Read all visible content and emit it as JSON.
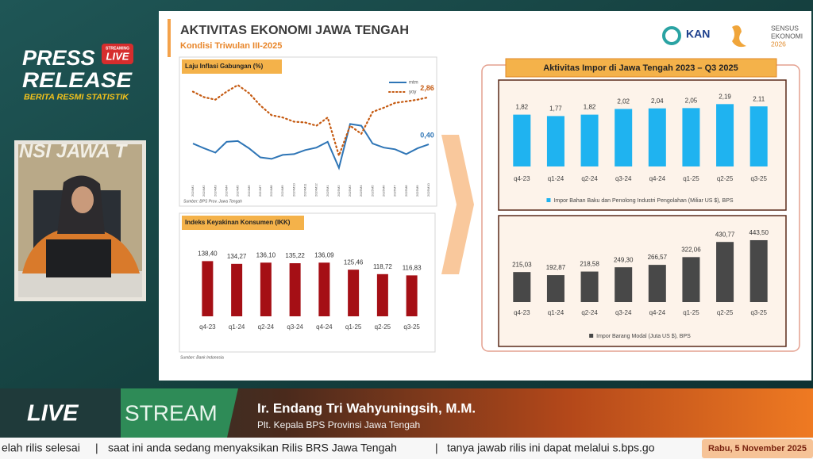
{
  "brand": {
    "badge_top": "STREAMING",
    "badge_live": "LIVE",
    "title_line1": "PRESS",
    "title_line2": "RELEASE",
    "tagline": "BERITA RESMI STATISTIK"
  },
  "webcam": {
    "wall_text": "NSI JAWA T"
  },
  "slide": {
    "title": "AKTIVITAS EKONOMI JAWA TENGAH",
    "subtitle": "Kondisi Triwulan III-2025",
    "logo_kan": "KAN",
    "logo_se_line1": "SENSUS",
    "logo_se_line2": "EKONOMI",
    "logo_se_line3": "2026",
    "import_title": "Aktivitas Impor di Jawa Tengah 2023 – Q3 2025"
  },
  "chart_data": [
    {
      "type": "line",
      "title": "Laju Inflasi Gabungan (%)",
      "source": "Sumber: BPS Prov. Jawa Tengah",
      "categories": [
        "2024M1",
        "2024M2",
        "2024M3",
        "2024M4",
        "2024M5",
        "2024M6",
        "2024M7",
        "2024M8",
        "2024M9",
        "2024M10",
        "2024M11",
        "2024M12",
        "2025M1",
        "2025M2",
        "2025M3",
        "2025M4",
        "2025M5",
        "2025M6",
        "2025M7",
        "2025M8",
        "2025M9",
        "2025M10"
      ],
      "ylim": [
        -1.5,
        4
      ],
      "series": [
        {
          "name": "mtm",
          "color": "#2e75b6",
          "style": "solid",
          "values": [
            0.44,
            0.19,
            -0.03,
            0.53,
            0.57,
            0.19,
            -0.28,
            -0.36,
            -0.15,
            -0.11,
            0.1,
            0.23,
            0.53,
            -0.83,
            1.46,
            1.37,
            0.44,
            0.23,
            0.14,
            -0.11,
            0.19,
            0.4
          ],
          "value_labels": [
            null,
            null,
            null,
            null,
            null,
            null,
            null,
            null,
            null,
            null,
            null,
            null,
            null,
            null,
            null,
            null,
            null,
            null,
            null,
            null,
            null,
            "0,40"
          ]
        },
        {
          "name": "yoy",
          "color": "#c55a11",
          "style": "dotted",
          "values": [
            3.15,
            2.86,
            2.73,
            3.15,
            3.49,
            3.07,
            2.43,
            1.92,
            1.8,
            1.58,
            1.54,
            1.37,
            1.8,
            -0.19,
            1.37,
            0.95,
            2.09,
            2.31,
            2.56,
            2.64,
            2.73,
            2.86
          ],
          "value_labels": [
            null,
            null,
            null,
            null,
            null,
            null,
            null,
            null,
            null,
            null,
            null,
            null,
            null,
            null,
            null,
            null,
            null,
            null,
            null,
            null,
            null,
            "2,86"
          ]
        }
      ]
    },
    {
      "type": "bar",
      "title": "Indeks Keyakinan Konsumen (IKK)",
      "source": "Sumber: Bank Indonesia",
      "categories": [
        "q4-23",
        "q1-24",
        "q2-24",
        "q3-24",
        "q4-24",
        "q1-25",
        "q2-25",
        "q3-25"
      ],
      "values": [
        138.4,
        134.27,
        136.1,
        135.22,
        136.09,
        125.46,
        118.72,
        116.83
      ],
      "value_labels": [
        "138,40",
        "134,27",
        "136,10",
        "135,22",
        "136,09",
        "125,46",
        "118,72",
        "116,83"
      ],
      "color": "#a50f15",
      "ylim": [
        55,
        170
      ]
    },
    {
      "type": "bar",
      "categories": [
        "q4-23",
        "q1-24",
        "q2-24",
        "q3-24",
        "q4-24",
        "q1-25",
        "q2-25",
        "q3-25"
      ],
      "series": [
        {
          "name": "Impor Bahan Baku dan Penolong Industri Pengolahan (Miliar US $), BPS",
          "color": "#1fb3f0",
          "values": [
            1.82,
            1.77,
            1.82,
            2.02,
            2.04,
            2.05,
            2.19,
            2.11
          ],
          "value_labels": [
            "1,82",
            "1,77",
            "1,82",
            "2,02",
            "2,04",
            "2,05",
            "2,19",
            "2,11"
          ]
        }
      ],
      "ylim": [
        0,
        2.7
      ]
    },
    {
      "type": "bar",
      "categories": [
        "q4-23",
        "q1-24",
        "q2-24",
        "q3-24",
        "q4-24",
        "q1-25",
        "q2-25",
        "q3-25"
      ],
      "series": [
        {
          "name": "Impor Barang Modal (Juta US $), BPS",
          "color": "#484848",
          "values": [
            215.03,
            192.87,
            218.58,
            249.3,
            266.57,
            322.06,
            430.77,
            443.5
          ],
          "value_labels": [
            "215,03",
            "192,87",
            "218,58",
            "249,30",
            "266,57",
            "322,06",
            "430,77",
            "443,50"
          ]
        }
      ],
      "ylim": [
        0,
        540
      ]
    }
  ],
  "banner": {
    "live": "LIVE",
    "stream": "STREAM",
    "name": "Ir. Endang Tri Wahyuningsih, M.M.",
    "role": "Plt. Kepala BPS Provinsi Jawa Tengah"
  },
  "ticker": {
    "items": [
      "elah rilis selesai",
      "saat ini anda sedang menyaksikan Rilis BRS Jawa Tengah",
      "tanya jawab rilis ini dapat melalui s.bps.go"
    ],
    "separator": "|",
    "date": "Rabu, 5 November 2025"
  }
}
